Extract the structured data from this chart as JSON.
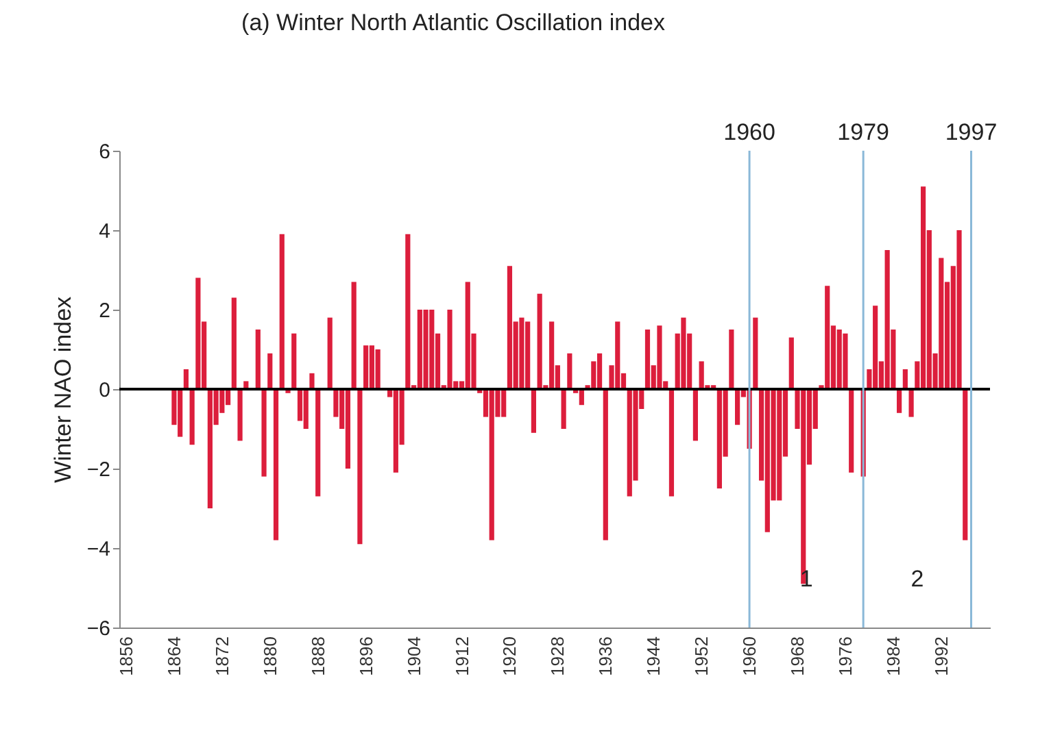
{
  "chart_data": {
    "type": "bar",
    "title": "(a) Winter North Atlantic Oscillation index",
    "ylabel": "Winter NAO index",
    "x": [
      1864,
      1865,
      1866,
      1867,
      1868,
      1869,
      1870,
      1871,
      1872,
      1873,
      1874,
      1875,
      1876,
      1877,
      1878,
      1879,
      1880,
      1881,
      1882,
      1883,
      1884,
      1885,
      1886,
      1887,
      1888,
      1889,
      1890,
      1891,
      1892,
      1893,
      1894,
      1895,
      1896,
      1897,
      1898,
      1899,
      1900,
      1901,
      1902,
      1903,
      1904,
      1905,
      1906,
      1907,
      1908,
      1909,
      1910,
      1911,
      1912,
      1913,
      1914,
      1915,
      1916,
      1917,
      1918,
      1919,
      1920,
      1921,
      1922,
      1923,
      1924,
      1925,
      1926,
      1927,
      1928,
      1929,
      1930,
      1931,
      1932,
      1933,
      1934,
      1935,
      1936,
      1937,
      1938,
      1939,
      1940,
      1941,
      1942,
      1943,
      1944,
      1945,
      1946,
      1947,
      1948,
      1949,
      1950,
      1951,
      1952,
      1953,
      1954,
      1955,
      1956,
      1957,
      1958,
      1959,
      1960,
      1961,
      1962,
      1963,
      1964,
      1965,
      1966,
      1967,
      1968,
      1969,
      1970,
      1971,
      1972,
      1973,
      1974,
      1975,
      1976,
      1977,
      1978,
      1979,
      1980,
      1981,
      1982,
      1983,
      1984,
      1985,
      1986,
      1987,
      1988,
      1989,
      1990,
      1991,
      1992,
      1993,
      1994,
      1995,
      1996
    ],
    "series": [
      {
        "color": "#dc1e3c",
        "values": [
          -0.9,
          -1.2,
          0.5,
          -1.4,
          2.8,
          1.7,
          -3.0,
          -0.9,
          -0.6,
          -0.4,
          2.3,
          -1.3,
          0.2,
          0.0,
          1.5,
          -2.2,
          0.9,
          -3.8,
          3.9,
          -0.1,
          1.4,
          -0.8,
          -1.0,
          0.4,
          -2.7,
          0.0,
          1.8,
          -0.7,
          -1.0,
          -2.0,
          2.7,
          -3.9,
          1.1,
          1.1,
          1.0,
          0.0,
          -0.2,
          -2.1,
          -1.4,
          3.9,
          0.1,
          2.0,
          2.0,
          2.0,
          1.4,
          0.1,
          2.0,
          0.2,
          0.2,
          2.7,
          1.4,
          -0.1,
          -0.7,
          -3.8,
          -0.7,
          -0.7,
          3.1,
          1.7,
          1.8,
          1.7,
          -1.1,
          2.4,
          0.1,
          1.7,
          0.6,
          -1.0,
          0.9,
          -0.1,
          -0.4,
          0.1,
          0.7,
          0.9,
          -3.8,
          0.6,
          1.7,
          0.4,
          -2.7,
          -2.3,
          -0.5,
          1.5,
          0.6,
          1.6,
          0.2,
          -2.7,
          1.4,
          1.8,
          1.4,
          -1.3,
          0.7,
          0.1,
          0.1,
          -2.5,
          -1.7,
          1.5,
          -0.9,
          -0.2,
          -1.5,
          1.8,
          -2.3,
          -3.6,
          -2.8,
          -2.8,
          -1.7,
          1.3,
          -1.0,
          -4.9,
          -1.9,
          -1.0,
          0.1,
          2.6,
          1.6,
          1.5,
          1.4,
          -2.1,
          0.0,
          -2.2,
          0.5,
          2.1,
          0.7,
          3.5,
          1.5,
          -0.6,
          0.5,
          -0.7,
          0.7,
          5.1,
          4.0,
          0.9,
          3.3,
          2.7,
          3.1,
          4.0,
          -3.8
        ]
      }
    ],
    "xlim": [
      1856,
      1999
    ],
    "xticks": [
      1856,
      1864,
      1872,
      1880,
      1888,
      1896,
      1904,
      1912,
      1920,
      1928,
      1936,
      1944,
      1952,
      1960,
      1968,
      1976,
      1984,
      1992
    ],
    "ylim": [
      -6,
      6
    ],
    "yticks": [
      -6,
      -4,
      -2,
      0,
      2,
      4,
      6
    ],
    "ref_lines": [
      {
        "axis": "y",
        "value": 0,
        "color": "#000000"
      },
      {
        "axis": "x",
        "value": 1960,
        "label": "1960",
        "color": "#8ab8d8"
      },
      {
        "axis": "x",
        "value": 1979,
        "label": "1979",
        "color": "#8ab8d8"
      },
      {
        "axis": "x",
        "value": 1997,
        "label": "1997",
        "color": "#8ab8d8"
      }
    ],
    "annotations": [
      "1",
      "2"
    ],
    "grid": false
  }
}
